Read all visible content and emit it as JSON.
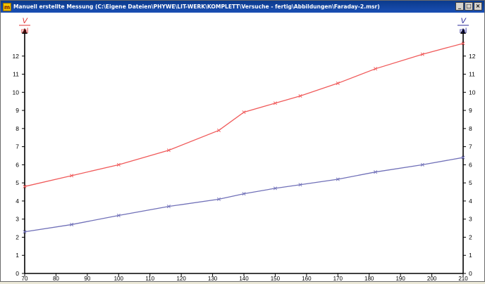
{
  "window": {
    "title": "Manuell erstellte Messung (C:\\Eigene Dateien\\PHYWE\\LIT-WERK\\KOMPLETT\\Versuche - fertig\\Abbildungen\\Faraday-2.msr)",
    "app_icon": "m",
    "buttons": {
      "minimize": "_",
      "maximize": "□",
      "close": "×"
    }
  },
  "chart_data": {
    "type": "line",
    "x": [
      70,
      85,
      100,
      116,
      132,
      140,
      150,
      158,
      170,
      182,
      197,
      210
    ],
    "xlim": [
      70,
      210
    ],
    "xticks": [
      70,
      80,
      90,
      100,
      110,
      120,
      130,
      140,
      150,
      160,
      170,
      180,
      190,
      200,
      210
    ],
    "ylim": [
      0,
      13
    ],
    "yticks": [
      0,
      1,
      2,
      3,
      4,
      5,
      6,
      7,
      8,
      9,
      10,
      11,
      12
    ],
    "left_axis_label": {
      "num": "V",
      "den": "ml",
      "color": "#e03030"
    },
    "right_axis_label": {
      "num": "V",
      "den": "ml",
      "color": "#2a2a9a"
    },
    "series": [
      {
        "color": "#f05a5a",
        "values": [
          4.8,
          5.4,
          6.0,
          6.8,
          7.9,
          8.9,
          9.4,
          9.8,
          10.5,
          11.3,
          12.1,
          12.7
        ]
      },
      {
        "color": "#7070b8",
        "values": [
          2.3,
          2.7,
          3.2,
          3.7,
          4.1,
          4.4,
          4.7,
          4.9,
          5.2,
          5.6,
          6.0,
          6.4
        ]
      }
    ]
  }
}
